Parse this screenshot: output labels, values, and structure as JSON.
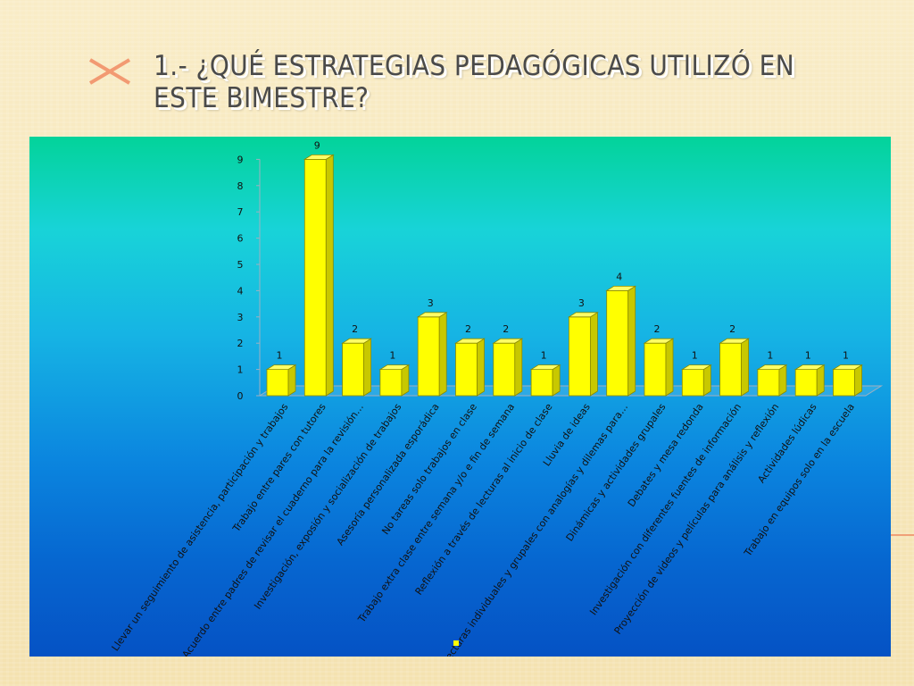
{
  "slide": {
    "title": "1.- ¿Qué estrategias  pedagógicas utilizó en este bimestre?"
  },
  "colors": {
    "bar_front": "#ffff00",
    "bar_side": "#c8c800",
    "bar_top": "#ffff66",
    "bar_edge": "#8a8a00",
    "axis": "#a0b0c0",
    "label_text": "#111111"
  },
  "chart_data": {
    "type": "bar",
    "title": "",
    "xlabel": "",
    "ylabel": "",
    "ylim": [
      0,
      9
    ],
    "yticks": [
      0,
      1,
      2,
      3,
      4,
      5,
      6,
      7,
      8,
      9
    ],
    "grid": false,
    "legend": "none",
    "three_d": true,
    "categories": [
      "Llevar un seguimiento de asistencia, participación y trabajos",
      "Trabajo entre pares con tutores",
      "Acuerdo entre padres de revisar el cuaderno para la revisión…",
      "Investigación, exposión y socialización de trabajos",
      "Asesoría personalizada esporádica",
      "No tareas solo trabajos en clase",
      "Trabajo extra clase entre semana y/o e fin de  semana",
      "Reflexión a través de lecturas al inicio de clase",
      "Lluvia de ideas",
      "Lecturas individuales y grupales con analogías y dilemas para…",
      "Dinámicas y actividades grupales",
      "Debates y mesa redonda",
      "Investigación con diferentes fuentes de información",
      "Proyección de videos y películas para análisis y reflexión",
      "Actividades lúdicas",
      "Trabajo en equipos solo en la escuela"
    ],
    "values": [
      1,
      9,
      2,
      1,
      3,
      2,
      2,
      1,
      3,
      4,
      2,
      1,
      2,
      1,
      1,
      1
    ]
  }
}
